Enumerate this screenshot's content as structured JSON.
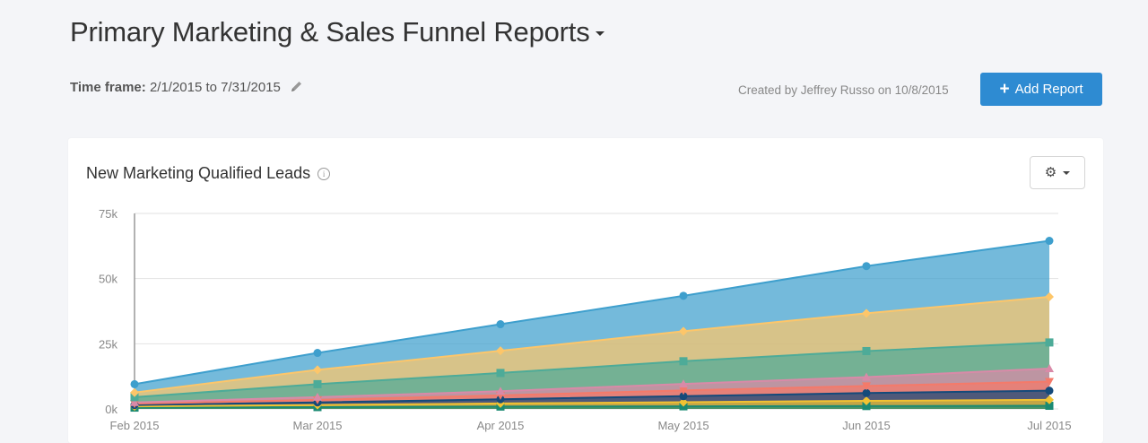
{
  "header": {
    "title": "Primary Marketing & Sales Funnel Reports",
    "timeframe_label": "Time frame:",
    "timeframe_value": "2/1/2015 to 7/31/2015",
    "created_by": "Created by Jeffrey Russo on 10/8/2015",
    "add_report_label": "Add Report"
  },
  "card": {
    "title": "New Marketing Qualified Leads"
  },
  "colors": {
    "button": "#2e8bd2"
  },
  "chart_data": {
    "type": "area",
    "stacked": true,
    "title": "New Marketing Qualified Leads",
    "x": [
      "Feb 2015",
      "Mar 2015",
      "Apr 2015",
      "May 2015",
      "Jun 2015",
      "Jul 2015"
    ],
    "x_positions": [
      0,
      1,
      2,
      3,
      4,
      5
    ],
    "ylim": [
      0,
      75000
    ],
    "yticks": [
      0,
      25000,
      50000,
      75000
    ],
    "ytick_labels": [
      "0k",
      "25k",
      "50k",
      "75k"
    ],
    "grid": true,
    "series": [
      {
        "values": [
          500,
          700,
          900,
          1000,
          1100,
          1200
        ],
        "color": "#1a8a73",
        "marker": "square"
      },
      {
        "values": [
          500,
          800,
          1200,
          1600,
          2000,
          2300
        ],
        "color": "#f1c232",
        "marker": "diamond"
      },
      {
        "values": [
          500,
          1000,
          1600,
          2300,
          3000,
          3500
        ],
        "color": "#154a7a",
        "marker": "circle"
      },
      {
        "values": [
          500,
          1000,
          1500,
          2200,
          2700,
          3500
        ],
        "color": "#f47a6a",
        "marker": "triangle-down"
      },
      {
        "values": [
          500,
          1000,
          1600,
          2500,
          3400,
          5000
        ],
        "color": "#d98aa8",
        "marker": "triangle"
      },
      {
        "values": [
          2000,
          5000,
          7000,
          8700,
          10000,
          10000
        ],
        "color": "#4dab98",
        "marker": "square"
      },
      {
        "values": [
          1800,
          5500,
          8500,
          11500,
          14500,
          17500
        ],
        "color": "#fdc66a",
        "marker": "diamond"
      },
      {
        "values": [
          3200,
          6500,
          10200,
          13600,
          18100,
          21500
        ],
        "color": "#3e9fcd",
        "marker": "circle"
      }
    ]
  }
}
